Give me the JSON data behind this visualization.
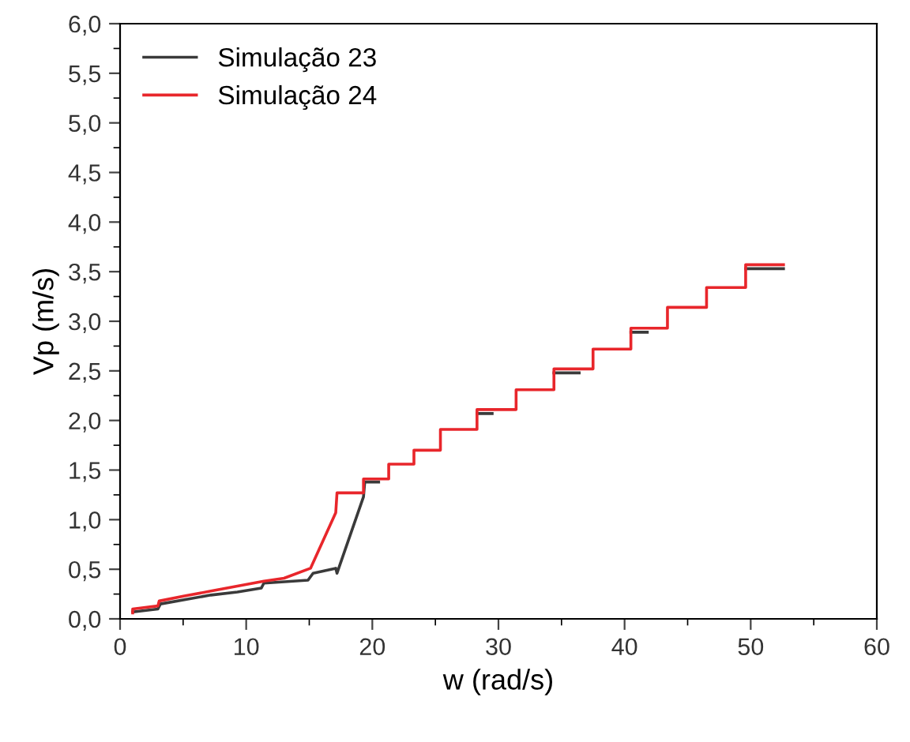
{
  "chart_data": {
    "type": "line",
    "xlabel": "w (rad/s)",
    "ylabel": "Vp (m/s)",
    "xlim": [
      0,
      60
    ],
    "ylim": [
      0,
      6
    ],
    "xticks": [
      0,
      10,
      20,
      30,
      40,
      50,
      60
    ],
    "yticks": [
      {
        "value": 0,
        "label": "0,0"
      },
      {
        "value": 0.5,
        "label": "0,5"
      },
      {
        "value": 1,
        "label": "1,0"
      },
      {
        "value": 1.5,
        "label": "1,5"
      },
      {
        "value": 2,
        "label": "2,0"
      },
      {
        "value": 2.5,
        "label": "2,5"
      },
      {
        "value": 3,
        "label": "3,0"
      },
      {
        "value": 3.5,
        "label": "3,5"
      },
      {
        "value": 4,
        "label": "4,0"
      },
      {
        "value": 4.5,
        "label": "4,5"
      },
      {
        "value": 5,
        "label": "5,0"
      },
      {
        "value": 5.5,
        "label": "5,5"
      },
      {
        "value": 6,
        "label": "6,0"
      }
    ],
    "grid": false,
    "legend": "top left",
    "marker": "none",
    "line_style": "solid",
    "series": [
      {
        "name": "Simulação 23",
        "color": "#3a3a3a",
        "x": [
          1,
          3,
          3.2,
          7.2,
          9.3,
          11.2,
          11.4,
          14.9,
          15.3,
          17.1,
          17.2,
          19.3,
          19.4,
          20.5,
          24,
          28.3,
          29.5,
          32,
          34.4,
          36.4,
          38,
          40.5,
          41.8,
          45,
          49.6,
          52.6
        ],
        "values": [
          0.07,
          0.1,
          0.15,
          0.24,
          0.27,
          0.31,
          0.36,
          0.39,
          0.46,
          0.51,
          0.46,
          1.23,
          1.38,
          1.38,
          null,
          2.07,
          2.07,
          null,
          2.48,
          2.48,
          null,
          2.89,
          2.89,
          null,
          3.53,
          3.53
        ]
      },
      {
        "name": "Simulação 24",
        "color": "#e8262b",
        "x": [
          1,
          1,
          3,
          3.1,
          5.1,
          7.2,
          9.3,
          11.4,
          13,
          15.1,
          17.1,
          17.2,
          19.3,
          19.3,
          21.3,
          21.3,
          23.3,
          23.3,
          25.4,
          25.4,
          28.3,
          28.3,
          31.4,
          31.4,
          34.4,
          34.4,
          37.5,
          37.5,
          40.5,
          40.5,
          43.4,
          43.4,
          46.5,
          46.5,
          49.6,
          49.6,
          52.6
        ],
        "values": [
          0.06,
          0.1,
          0.13,
          0.18,
          0.23,
          0.28,
          0.33,
          0.38,
          0.41,
          0.51,
          1.07,
          1.27,
          1.27,
          1.41,
          1.41,
          1.56,
          1.56,
          1.7,
          1.7,
          1.91,
          1.91,
          2.11,
          2.11,
          2.31,
          2.31,
          2.52,
          2.52,
          2.72,
          2.72,
          2.93,
          2.93,
          3.14,
          3.14,
          3.34,
          3.34,
          3.57,
          3.57
        ]
      }
    ]
  }
}
